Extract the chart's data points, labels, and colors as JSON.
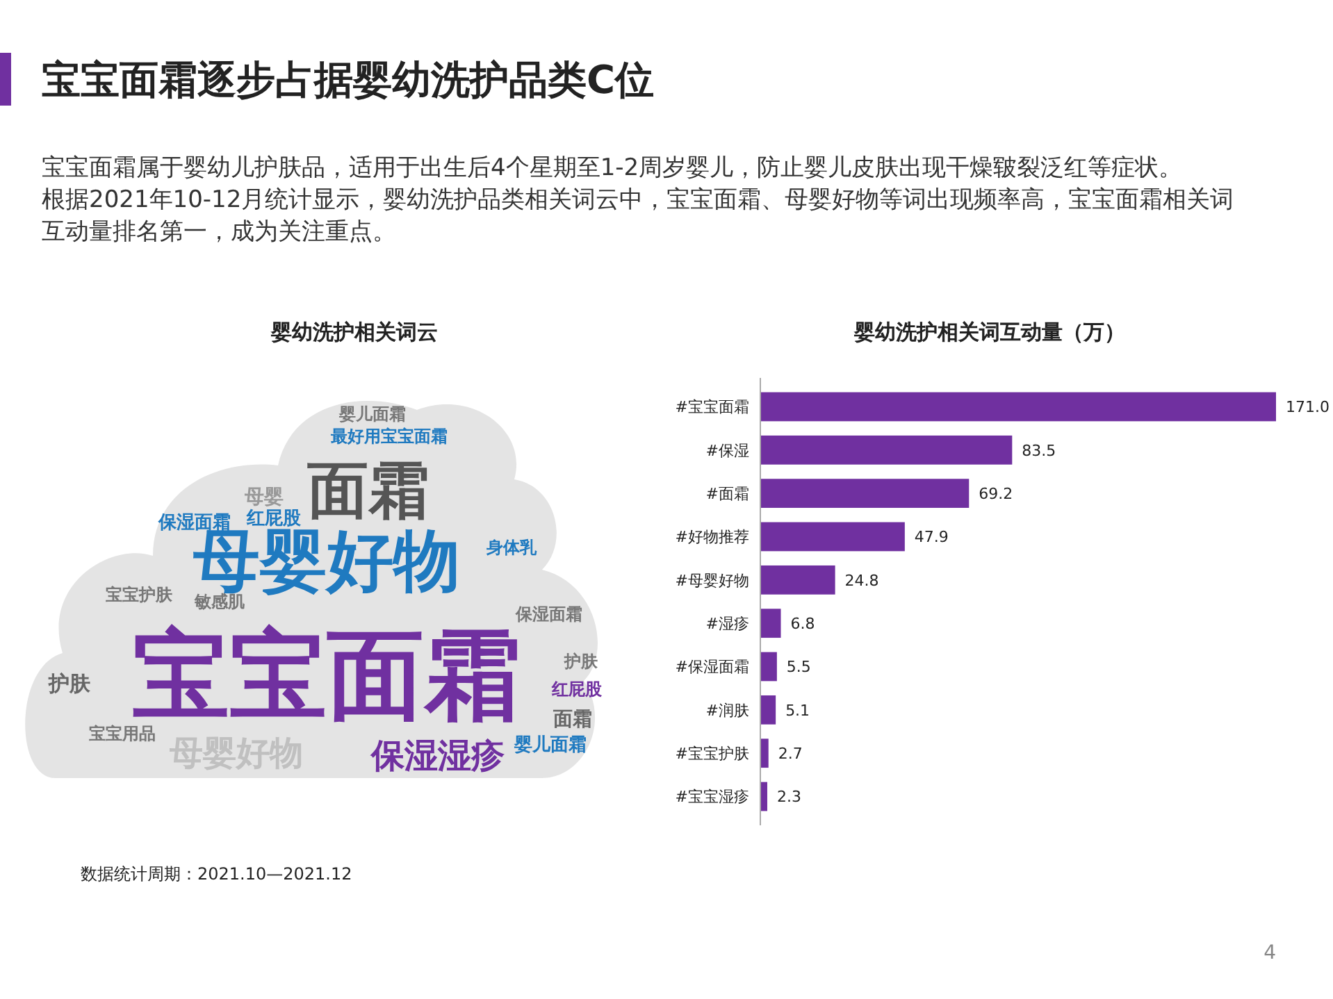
{
  "chart_data": [
    {
      "type": "other",
      "title": "宝宝面霜逐步占据婴幼洗护品类C位",
      "subtitle": "婴幼洗护相关词云",
      "annotations": [
        "宝宝面霜属于婴幼儿护肤品，适用于出生后4个星期至1-2周岁婴儿，防止婴儿皮肤出现干燥皲裂泛红等症状。",
        "根据2021年10-12月统计显示，婴幼洗护品类相关词云中，宝宝面霜、母婴好物等词出现频率高，宝宝面霜相关词互动量排名第一，成为关注重点。",
        "宝宝面霜",
        "母婴好物",
        "面霜",
        "保湿湿疹",
        "母婴好物",
        "婴儿面霜",
        "保湿面霜",
        "红屁股",
        "最好用宝宝面霜",
        "敏感肌",
        "宝宝护肤",
        "护肤",
        "面霜",
        "身体乳",
        "保湿面霜",
        "护肤",
        "红屁股",
        "宝宝用品",
        "母婴",
        "婴儿面霜",
        "数据统计周期：2021.10—2021.12",
        "4"
      ]
    },
    {
      "type": "bar",
      "orientation": "horizontal",
      "title": "婴幼洗护相关词互动量（万）",
      "color": "#7030a0",
      "categories": [
        "#宝宝面霜",
        "#保湿",
        "#面霜",
        "#好物推荐",
        "#母婴好物",
        "#湿疹",
        "#保湿面霜",
        "#润肤",
        "#宝宝护肤",
        "#宝宝湿疹"
      ],
      "values": [
        171.0,
        83.5,
        69.2,
        47.9,
        24.8,
        6.8,
        5.5,
        5.1,
        2.7,
        2.3
      ],
      "value_labels": [
        "171.0",
        "83.5",
        "69.2",
        "47.9",
        "24.8",
        "6.8",
        "5.5",
        "5.1",
        "2.7",
        "2.3"
      ]
    }
  ]
}
